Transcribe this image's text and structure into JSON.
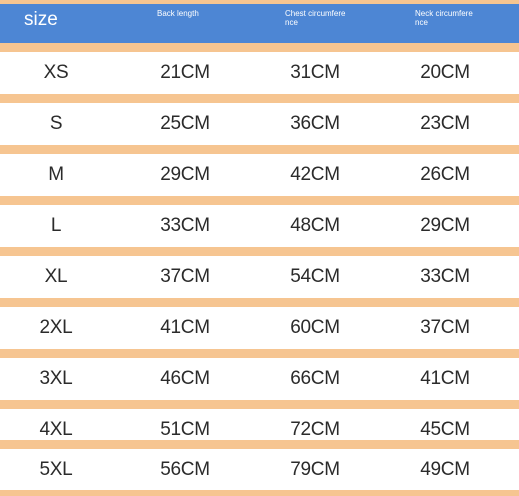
{
  "header": {
    "size": "size",
    "back_length": "Back length",
    "chest_circumference": "Chest circumfere nce",
    "neck_circumference": "Neck circumfere nce"
  },
  "rows": [
    {
      "size": "XS",
      "back": "21CM",
      "chest": "31CM",
      "neck": "20CM"
    },
    {
      "size": "S",
      "back": "25CM",
      "chest": "36CM",
      "neck": "23CM"
    },
    {
      "size": "M",
      "back": "29CM",
      "chest": "42CM",
      "neck": "26CM"
    },
    {
      "size": "L",
      "back": "33CM",
      "chest": "48CM",
      "neck": "29CM"
    },
    {
      "size": "XL",
      "back": "37CM",
      "chest": "54CM",
      "neck": "33CM"
    },
    {
      "size": "2XL",
      "back": "41CM",
      "chest": "60CM",
      "neck": "37CM"
    },
    {
      "size": "3XL",
      "back": "46CM",
      "chest": "66CM",
      "neck": "41CM"
    },
    {
      "size": "4XL",
      "back": "51CM",
      "chest": "72CM",
      "neck": "45CM"
    },
    {
      "size": "5XL",
      "back": "56CM",
      "chest": "79CM",
      "neck": "49CM"
    }
  ],
  "colors": {
    "header_background": "#4d86d4",
    "separator": "#f6c591",
    "text": "#2b2b2b"
  }
}
